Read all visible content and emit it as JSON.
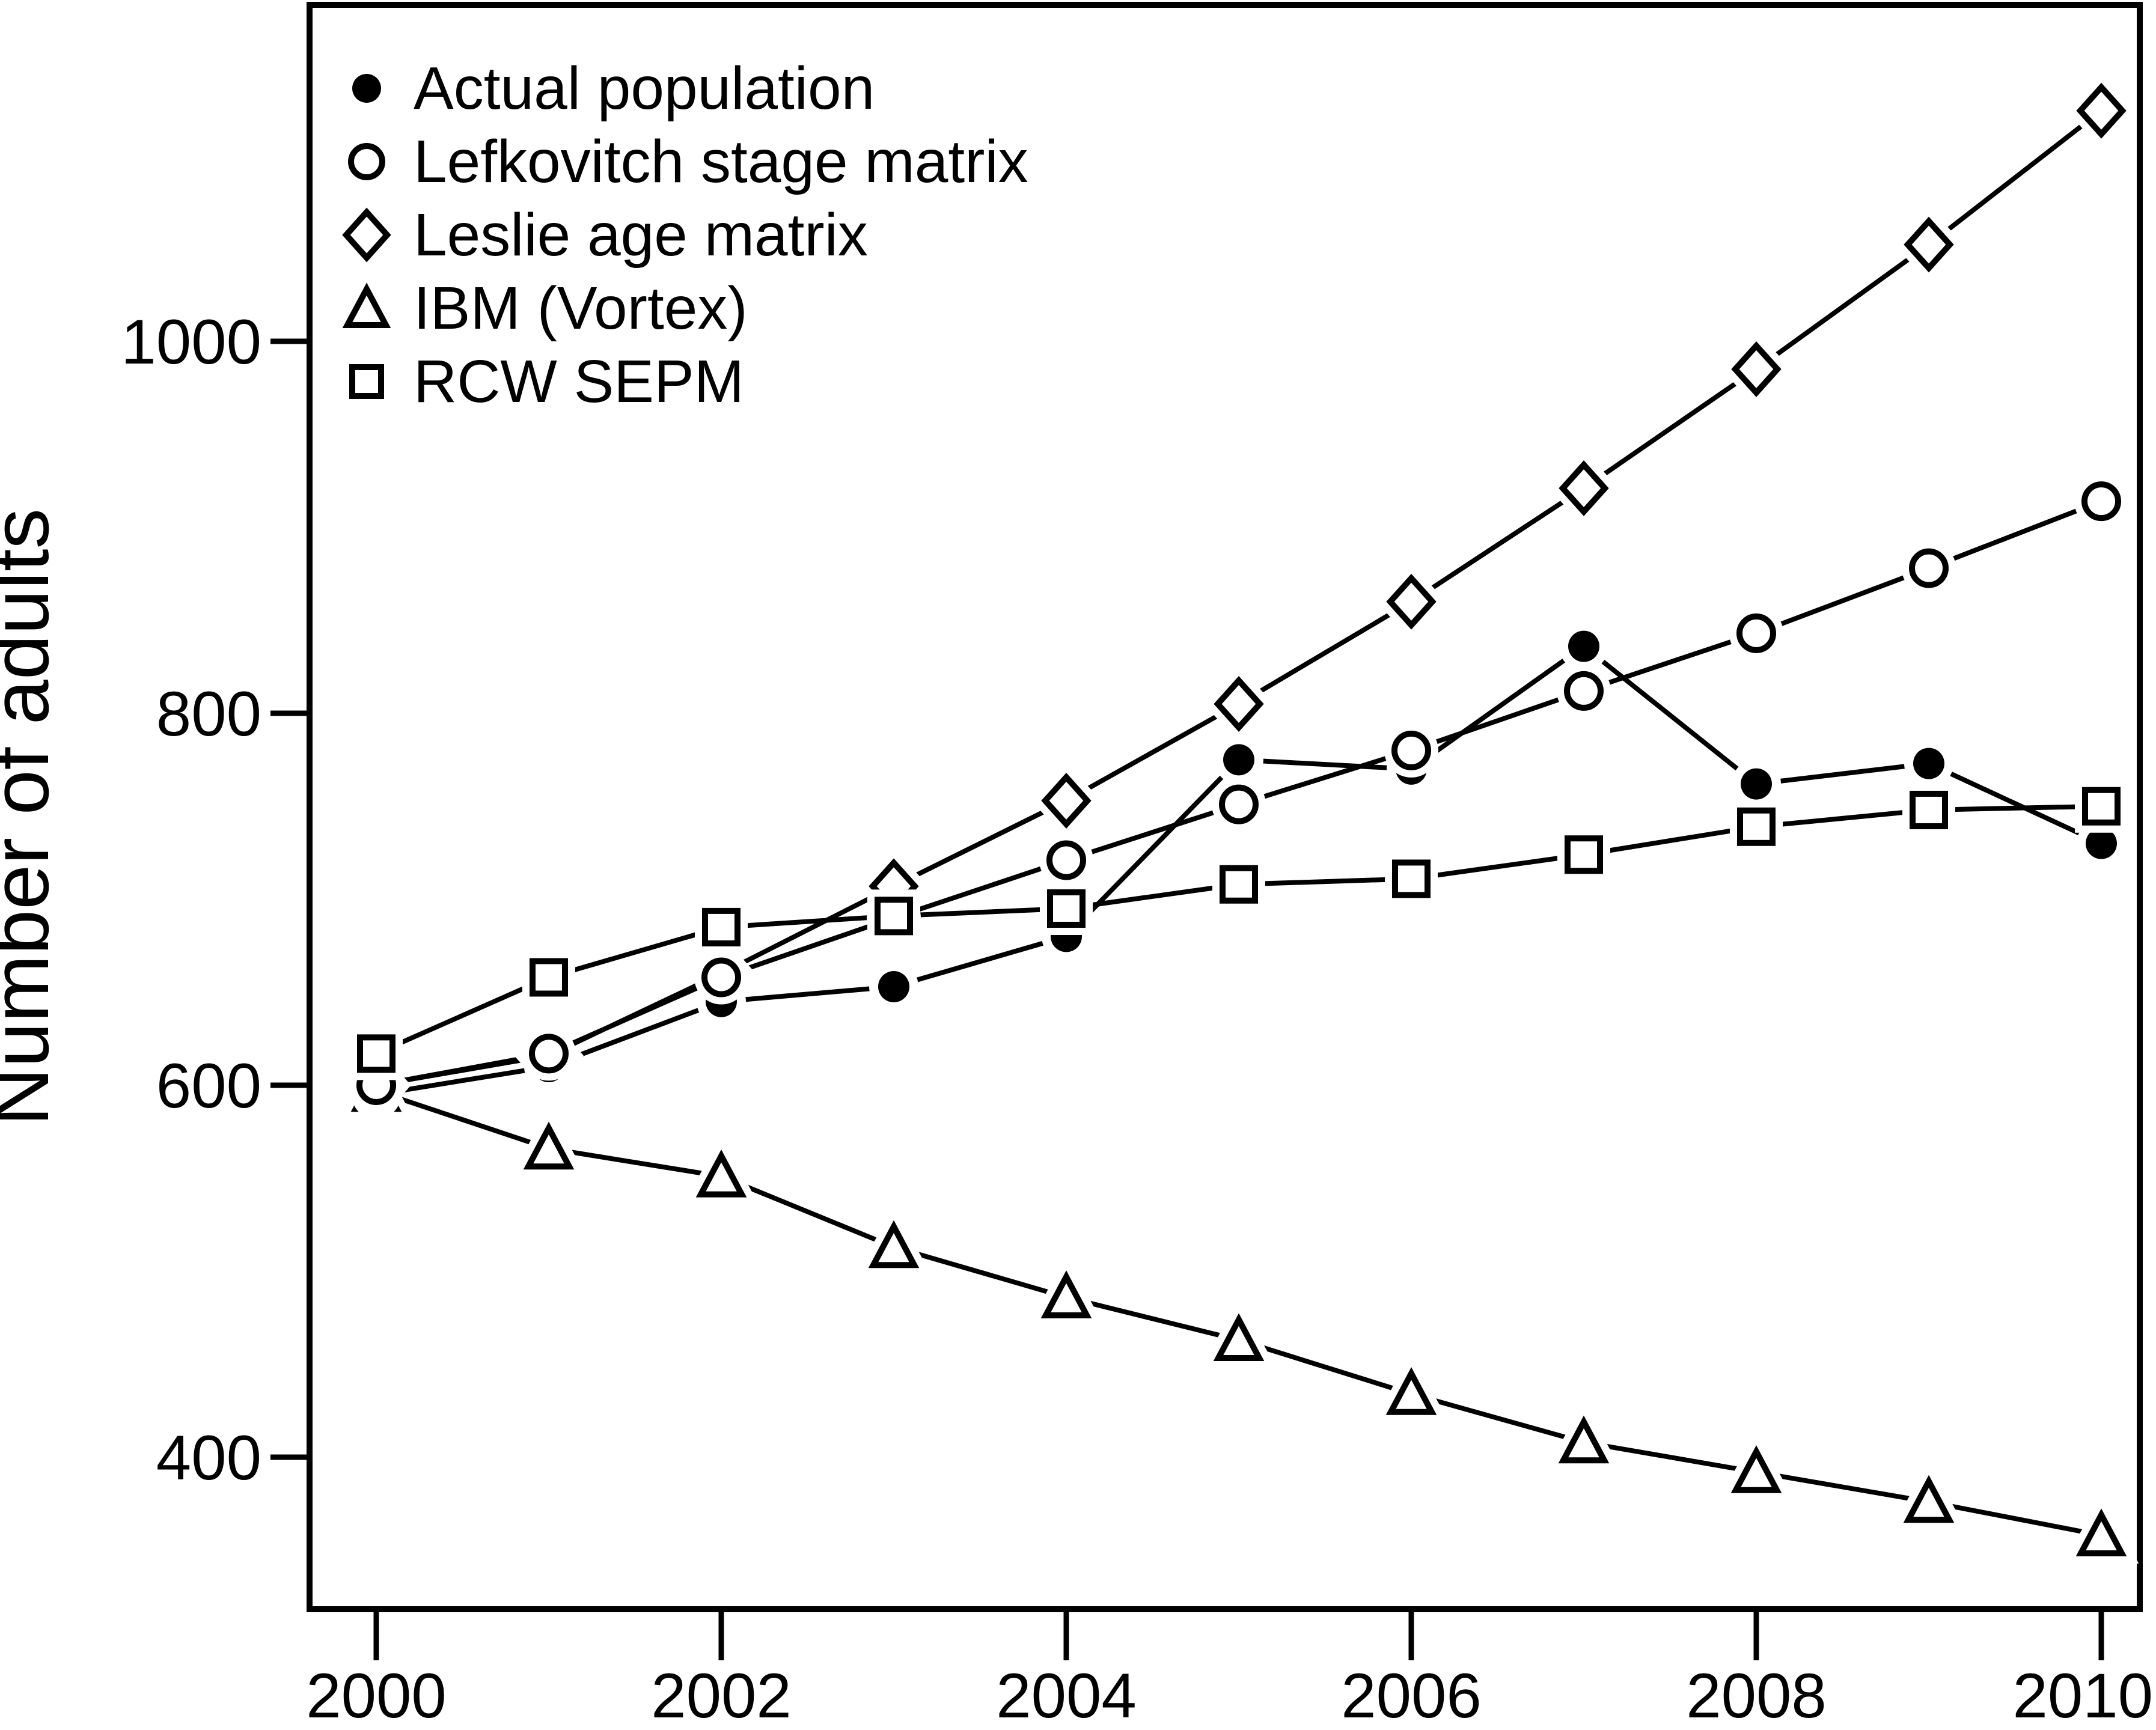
{
  "figure_title": "",
  "chart_data": {
    "type": "line",
    "x": [
      2000,
      2001,
      2002,
      2003,
      2004,
      2005,
      2006,
      2007,
      2008,
      2009,
      2010
    ],
    "series": [
      {
        "name": "Actual population",
        "marker": "filled-circle",
        "values": [
          595,
          610,
          645,
          653,
          680,
          775,
          770,
          836,
          762,
          773,
          730
        ]
      },
      {
        "name": "Lefkovitch stage matrix",
        "marker": "open-circle",
        "values": [
          600,
          617,
          658,
          690,
          721,
          751,
          780,
          812,
          843,
          878,
          914
        ]
      },
      {
        "name": "Leslie age matrix",
        "marker": "open-diamond",
        "values": [
          600,
          616,
          660,
          707,
          753,
          805,
          860,
          921,
          985,
          1052,
          1124
        ]
      },
      {
        "name": "IBM (Vortex)",
        "marker": "open-triangle",
        "values": [
          597,
          566,
          551,
          513,
          486,
          463,
          434,
          408,
          392,
          376,
          358
        ]
      },
      {
        "name": "RCW SEPM",
        "marker": "open-square",
        "values": [
          617,
          658,
          685,
          691,
          695,
          708,
          711,
          724,
          739,
          748,
          750
        ]
      }
    ],
    "xlabel": "",
    "ylabel": "Number of adults",
    "xticks": [
      2000,
      2002,
      2004,
      2006,
      2008,
      2010
    ],
    "yticks": [
      400,
      600,
      800,
      1000
    ],
    "xlim": [
      1999.6,
      2010.3
    ],
    "ylim": [
      318,
      1180
    ],
    "grid": false,
    "legend_position": "top-left",
    "colors": {
      "foreground": "#000000",
      "background": "#ffffff"
    }
  }
}
